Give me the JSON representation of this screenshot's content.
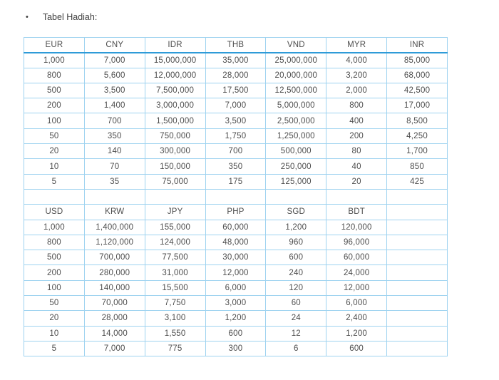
{
  "page": {
    "bullet": "•",
    "title": "Tabel Hadiah:"
  },
  "colors": {
    "grid_border": "#9fd3f0",
    "header_underline": "#2e9bd8",
    "text": "#4d4d4d",
    "background": "#ffffff"
  },
  "table": {
    "section1": {
      "headers": [
        "EUR",
        "CNY",
        "IDR",
        "THB",
        "VND",
        "MYR",
        "INR"
      ],
      "rows": [
        [
          "1,000",
          "7,000",
          "15,000,000",
          "35,000",
          "25,000,000",
          "4,000",
          "85,000"
        ],
        [
          "800",
          "5,600",
          "12,000,000",
          "28,000",
          "20,000,000",
          "3,200",
          "68,000"
        ],
        [
          "500",
          "3,500",
          "7,500,000",
          "17,500",
          "12,500,000",
          "2,000",
          "42,500"
        ],
        [
          "200",
          "1,400",
          "3,000,000",
          "7,000",
          "5,000,000",
          "800",
          "17,000"
        ],
        [
          "100",
          "700",
          "1,500,000",
          "3,500",
          "2,500,000",
          "400",
          "8,500"
        ],
        [
          "50",
          "350",
          "750,000",
          "1,750",
          "1,250,000",
          "200",
          "4,250"
        ],
        [
          "20",
          "140",
          "300,000",
          "700",
          "500,000",
          "80",
          "1,700"
        ],
        [
          "10",
          "70",
          "150,000",
          "350",
          "250,000",
          "40",
          "850"
        ],
        [
          "5",
          "35",
          "75,000",
          "175",
          "125,000",
          "20",
          "425"
        ]
      ]
    },
    "spacer_row": [
      "",
      "",
      "",
      "",
      "",
      "",
      ""
    ],
    "section2": {
      "headers": [
        "USD",
        "KRW",
        "JPY",
        "PHP",
        "SGD",
        "BDT",
        ""
      ],
      "rows": [
        [
          "1,000",
          "1,400,000",
          "155,000",
          "60,000",
          "1,200",
          "120,000",
          ""
        ],
        [
          "800",
          "1,120,000",
          "124,000",
          "48,000",
          "960",
          "96,000",
          ""
        ],
        [
          "500",
          "700,000",
          "77,500",
          "30,000",
          "600",
          "60,000",
          ""
        ],
        [
          "200",
          "280,000",
          "31,000",
          "12,000",
          "240",
          "24,000",
          ""
        ],
        [
          "100",
          "140,000",
          "15,500",
          "6,000",
          "120",
          "12,000",
          ""
        ],
        [
          "50",
          "70,000",
          "7,750",
          "3,000",
          "60",
          "6,000",
          ""
        ],
        [
          "20",
          "28,000",
          "3,100",
          "1,200",
          "24",
          "2,400",
          ""
        ],
        [
          "10",
          "14,000",
          "1,550",
          "600",
          "12",
          "1,200",
          ""
        ],
        [
          "5",
          "7,000",
          "775",
          "300",
          "6",
          "600",
          ""
        ]
      ]
    }
  }
}
